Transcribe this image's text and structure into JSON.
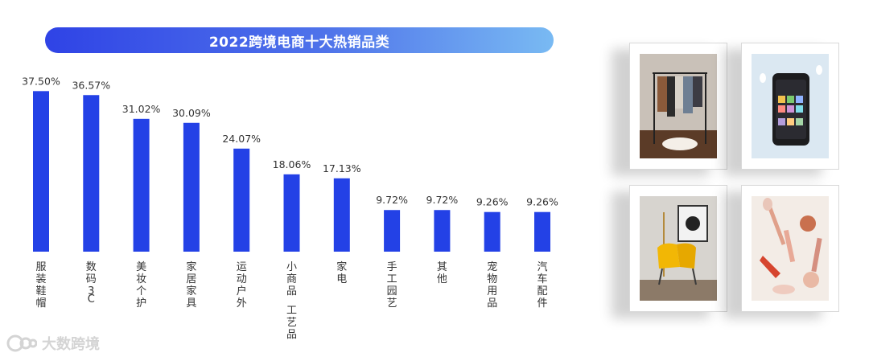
{
  "chart_data": {
    "type": "bar",
    "title": "2022跨境电商十大热销品类",
    "categories": [
      "服装鞋帽",
      "数码3C",
      "美妆个护",
      "家居家具",
      "运动户外",
      "小商品 工艺品",
      "家电",
      "手工园艺",
      "其他",
      "宠物用品",
      "汽车配件"
    ],
    "values": [
      37.5,
      36.57,
      31.02,
      30.09,
      24.07,
      18.06,
      17.13,
      9.72,
      9.72,
      9.26,
      9.26
    ],
    "value_labels": [
      "37.50%",
      "36.57%",
      "31.02%",
      "30.09%",
      "24.07%",
      "18.06%",
      "17.13%",
      "9.72%",
      "9.72%",
      "9.26%",
      "9.26%"
    ],
    "xlabel": "",
    "ylabel": "",
    "ylim": [
      0,
      40
    ],
    "grid": false,
    "bar_color": "#2341e6"
  },
  "photos": [
    {
      "icon": "clothing-rack-photo"
    },
    {
      "icon": "smartphone-photo"
    },
    {
      "icon": "armchair-photo"
    },
    {
      "icon": "cosmetics-photo"
    }
  ],
  "watermark": {
    "text": "大数跨境",
    "icon": "logo-icon"
  }
}
